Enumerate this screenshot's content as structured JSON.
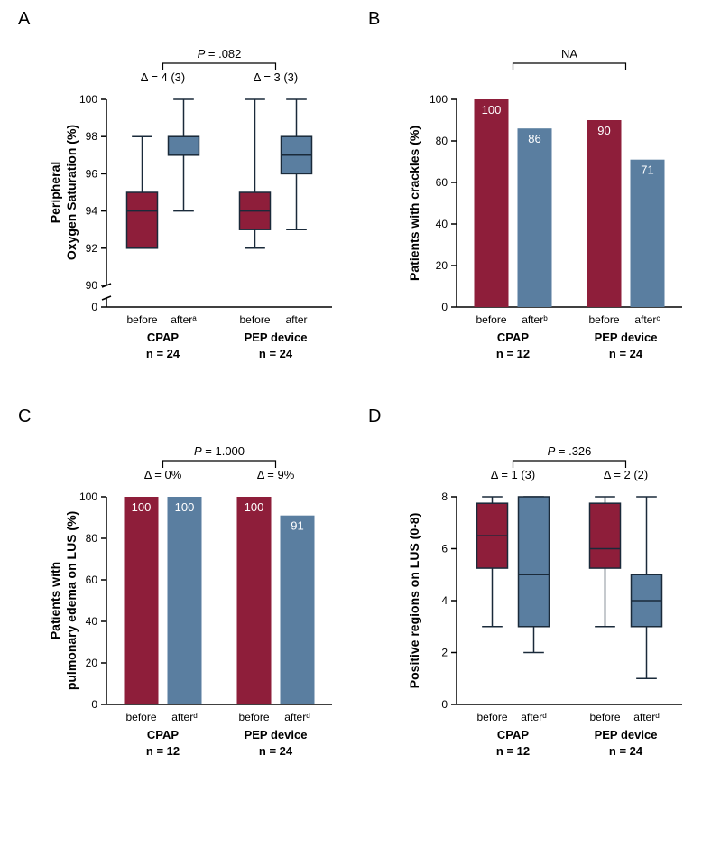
{
  "colors": {
    "before": "#8e1e3a",
    "after": "#5a7ea0",
    "box_stroke": "#1a2a3a"
  },
  "panelA": {
    "label": "A",
    "ylabel_line1": "Peripheral",
    "ylabel_line2": "Oxygen Saturation (%)",
    "ylim": [
      90,
      100
    ],
    "yticks": [
      90,
      92,
      94,
      96,
      98,
      100
    ],
    "zero_tick": 0,
    "break": true,
    "groups": [
      {
        "name": "CPAP",
        "n": "n = 24",
        "tick_labels": [
          "before",
          "afterᵃ"
        ]
      },
      {
        "name": "PEP device",
        "n": "n = 24",
        "tick_labels": [
          "before",
          "after"
        ]
      }
    ],
    "boxes": [
      {
        "q1": 92,
        "median": 94,
        "q3": 95,
        "wlo": 92,
        "whi": 98,
        "color": "before"
      },
      {
        "q1": 97,
        "median": 98,
        "q3": 98,
        "wlo": 94,
        "whi": 100,
        "color": "after"
      },
      {
        "q1": 93,
        "median": 94,
        "q3": 95,
        "wlo": 92,
        "whi": 100,
        "color": "before"
      },
      {
        "q1": 96,
        "median": 97,
        "q3": 98,
        "wlo": 93,
        "whi": 100,
        "color": "after"
      }
    ],
    "deltas": [
      "Δ = 4 (3)",
      "Δ = 3 (3)"
    ],
    "pvalue": "P = .082"
  },
  "panelB": {
    "label": "B",
    "ylabel": "Patients with crackles (%)",
    "ylim": [
      0,
      100
    ],
    "yticks": [
      0,
      20,
      40,
      60,
      80,
      100
    ],
    "groups": [
      {
        "name": "CPAP",
        "n": "n = 12",
        "tick_labels": [
          "before",
          "afterᵇ"
        ]
      },
      {
        "name": "PEP device",
        "n": "n = 24",
        "tick_labels": [
          "before",
          "afterᶜ"
        ]
      }
    ],
    "bars": [
      {
        "value": 100,
        "label": "100",
        "color": "before"
      },
      {
        "value": 86,
        "label": "86",
        "color": "after"
      },
      {
        "value": 90,
        "label": "90",
        "color": "before"
      },
      {
        "value": 71,
        "label": "71",
        "color": "after"
      }
    ],
    "pvalue": "NA"
  },
  "panelC": {
    "label": "C",
    "ylabel_line1": "Patients with",
    "ylabel_line2": "pulmonary edema on LUS (%)",
    "ylim": [
      0,
      100
    ],
    "yticks": [
      0,
      20,
      40,
      60,
      80,
      100
    ],
    "groups": [
      {
        "name": "CPAP",
        "n": "n = 12",
        "tick_labels": [
          "before",
          "afterᵈ"
        ]
      },
      {
        "name": "PEP device",
        "n": "n = 24",
        "tick_labels": [
          "before",
          "afterᵈ"
        ]
      }
    ],
    "bars": [
      {
        "value": 100,
        "label": "100",
        "color": "before"
      },
      {
        "value": 100,
        "label": "100",
        "color": "after"
      },
      {
        "value": 100,
        "label": "100",
        "color": "before"
      },
      {
        "value": 91,
        "label": "91",
        "color": "after"
      }
    ],
    "deltas": [
      "Δ = 0%",
      "Δ = 9%"
    ],
    "pvalue": "P = 1.000"
  },
  "panelD": {
    "label": "D",
    "ylabel": "Positive regions on LUS (0-8)",
    "ylim": [
      0,
      8
    ],
    "yticks": [
      0,
      2,
      4,
      6,
      8
    ],
    "groups": [
      {
        "name": "CPAP",
        "n": "n = 12",
        "tick_labels": [
          "before",
          "afterᵈ"
        ]
      },
      {
        "name": "PEP device",
        "n": "n = 24",
        "tick_labels": [
          "before",
          "afterᵈ"
        ]
      }
    ],
    "boxes": [
      {
        "q1": 5.25,
        "median": 6.5,
        "q3": 7.75,
        "wlo": 3,
        "whi": 8,
        "color": "before"
      },
      {
        "q1": 3,
        "median": 5,
        "q3": 8,
        "wlo": 2,
        "whi": 8,
        "color": "after"
      },
      {
        "q1": 5.25,
        "median": 6,
        "q3": 7.75,
        "wlo": 3,
        "whi": 8,
        "color": "before"
      },
      {
        "q1": 3,
        "median": 4,
        "q3": 5,
        "wlo": 1,
        "whi": 8,
        "color": "after"
      }
    ],
    "deltas": [
      "Δ = 1 (3)",
      "Δ = 2 (2)"
    ],
    "pvalue": "P = .326"
  }
}
